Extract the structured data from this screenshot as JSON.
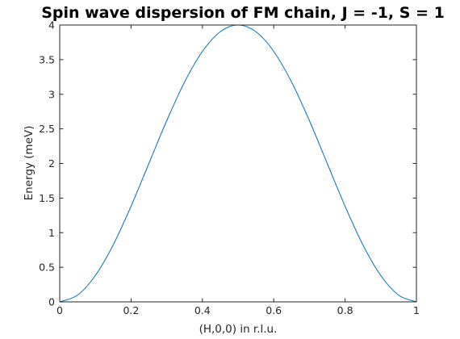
{
  "chart_data": {
    "type": "line",
    "title": "Spin wave dispersion of FM chain, J = -1, S = 1",
    "xlabel": "(H,0,0) in r.l.u.",
    "ylabel": "Energy (meV)",
    "xlim": [
      0,
      1
    ],
    "ylim": [
      0,
      4
    ],
    "xticks": [
      0,
      0.2,
      0.4,
      0.6,
      0.8,
      1
    ],
    "xtick_labels": [
      "0",
      "0.2",
      "0.4",
      "0.6",
      "0.8",
      "1"
    ],
    "yticks": [
      0,
      0.5,
      1,
      1.5,
      2,
      2.5,
      3,
      3.5,
      4
    ],
    "ytick_labels": [
      "0",
      "0.5",
      "1",
      "1.5",
      "2",
      "2.5",
      "3",
      "3.5",
      "4"
    ],
    "grid": false,
    "series": [
      {
        "color": "#0072bd",
        "x": [
          0,
          0.05,
          0.1,
          0.15,
          0.2,
          0.25,
          0.3,
          0.35,
          0.4,
          0.45,
          0.5,
          0.55,
          0.6,
          0.65,
          0.7,
          0.75,
          0.8,
          0.85,
          0.9,
          0.95,
          1
        ],
        "y": [
          0,
          0.098,
          0.382,
          0.824,
          1.382,
          2.0,
          2.618,
          3.176,
          3.618,
          3.902,
          4.0,
          3.902,
          3.618,
          3.176,
          2.618,
          2.0,
          1.382,
          0.824,
          0.382,
          0.098,
          0
        ]
      }
    ]
  }
}
